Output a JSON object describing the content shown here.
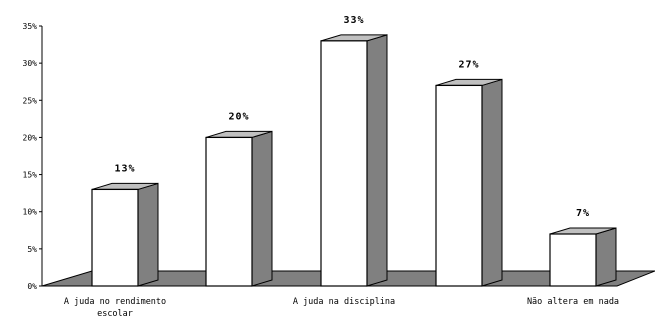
{
  "chart_data": {
    "type": "bar",
    "style": "3d-column",
    "categories": [
      "A juda no rendimento escolar",
      "",
      "A juda na disciplina",
      "",
      "Não altera em nada"
    ],
    "category_label_lines": [
      [
        "A juda no rendimento",
        "escolar"
      ],
      [],
      [
        "A juda na disciplina"
      ],
      [],
      [
        "Não altera em nada"
      ]
    ],
    "values": [
      13,
      20,
      33,
      27,
      7
    ],
    "data_labels": [
      "13%",
      "20%",
      "33%",
      "27%",
      "7%"
    ],
    "ylim": [
      0,
      35
    ],
    "yticks": [
      0,
      5,
      10,
      15,
      20,
      25,
      30,
      35
    ],
    "ytick_labels": [
      "0%",
      "5%",
      "10%",
      "15%",
      "20%",
      "25%",
      "30%",
      "35%"
    ],
    "title": "",
    "xlabel": "",
    "ylabel": "",
    "grid": false,
    "legend": "none",
    "colors": {
      "bar_front": "#ffffff",
      "bar_side": "#808080",
      "bar_top": "#c0c0c0",
      "floor": "#808080",
      "axis": "#000000"
    }
  }
}
